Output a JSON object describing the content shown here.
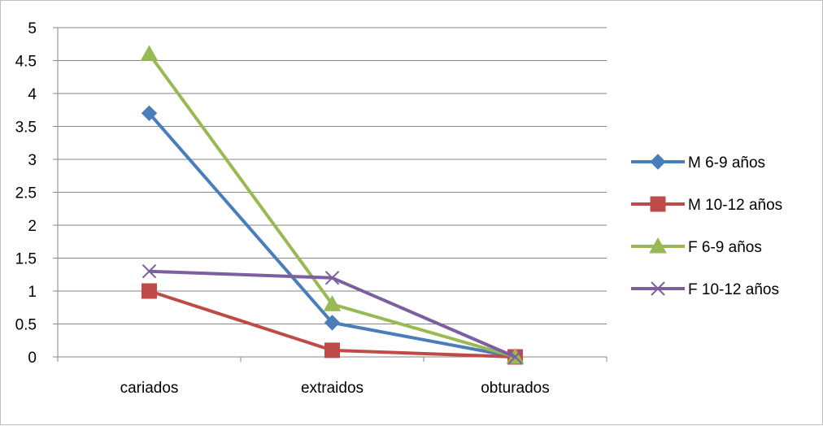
{
  "chart_data": {
    "type": "line",
    "title": "",
    "xlabel": "",
    "ylabel": "",
    "categories": [
      "cariados",
      "extraidos",
      "obturados"
    ],
    "ylim": [
      0,
      5
    ],
    "yticks": [
      "0",
      "0.5",
      "1",
      "1.5",
      "2",
      "2.5",
      "3",
      "3.5",
      "4",
      "4.5",
      "5"
    ],
    "grid": true,
    "legend_position": "right",
    "series": [
      {
        "name": "M 6-9 años",
        "values": [
          3.7,
          0.52,
          0
        ],
        "color": "#4a7ebb",
        "marker": "diamond"
      },
      {
        "name": "M 10-12 años",
        "values": [
          1.0,
          0.1,
          0
        ],
        "color": "#be4b48",
        "marker": "square"
      },
      {
        "name": "F 6-9 años",
        "values": [
          4.6,
          0.8,
          0
        ],
        "color": "#98b954",
        "marker": "triangle"
      },
      {
        "name": "F 10-12 años",
        "values": [
          1.3,
          1.2,
          0
        ],
        "color": "#7d5fa0",
        "marker": "x"
      }
    ]
  }
}
